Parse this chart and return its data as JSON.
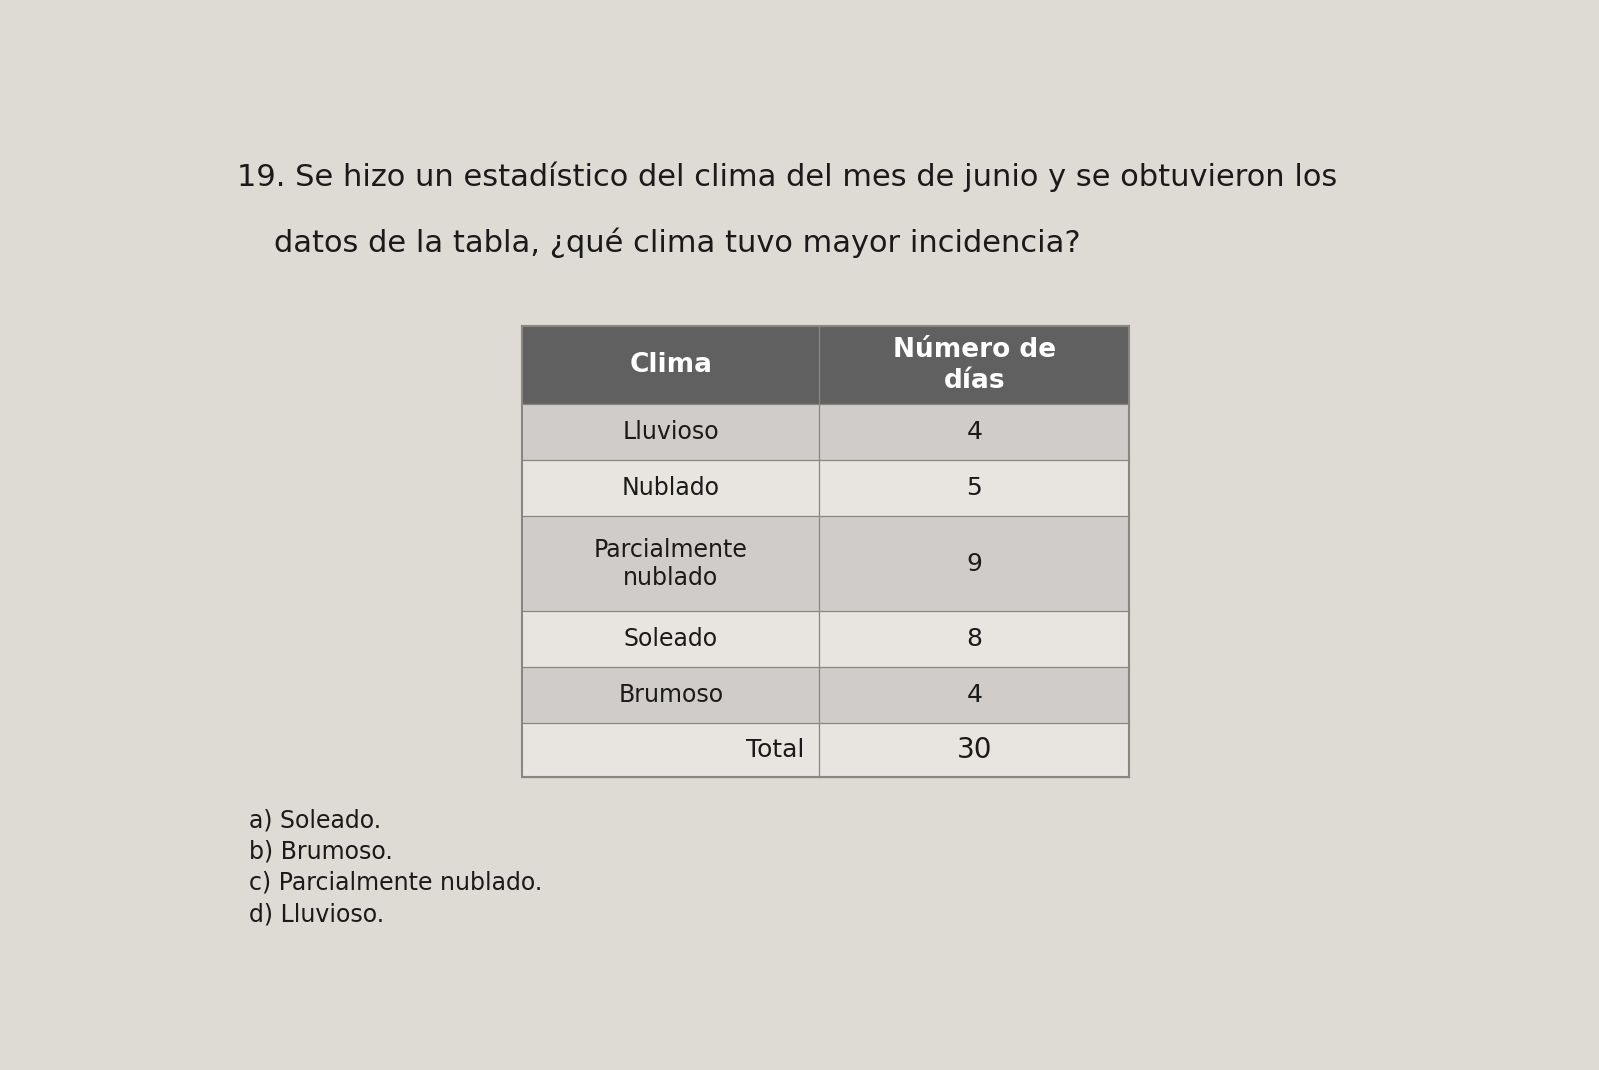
{
  "question_number": "19.",
  "question_text_line1": "Se hizo un estadístico del clima del mes de junio y se obtuvieron los",
  "question_text_line2": "datos de la tabla, ¿qué clima tuvo mayor incidencia?",
  "col1_header": "Clima",
  "col2_header": "Número de\ndías",
  "rows": [
    [
      "Lluvioso",
      "4"
    ],
    [
      "Nublado",
      "5"
    ],
    [
      "Parcialmente\nnublado",
      "9"
    ],
    [
      "Soleado",
      "8"
    ],
    [
      "Brumoso",
      "4"
    ]
  ],
  "total_label": "Total",
  "total_value": "30",
  "options": [
    "a) Soleado.",
    "b) Brumoso.",
    "c) Parcialmente nublado.",
    "d) Lluvioso."
  ],
  "header_bg_color": "#606060",
  "header_text_color": "#ffffff",
  "row_odd_bg": "#d0ccca",
  "row_even_bg": "#e8e4e0",
  "total_row_bg": "#e8e4e0",
  "bg_color": "#dedad4",
  "text_color": "#1a1a1a",
  "table_border_color": "#888880",
  "question_fontsize": 22,
  "table_fontsize": 17,
  "options_fontsize": 17
}
